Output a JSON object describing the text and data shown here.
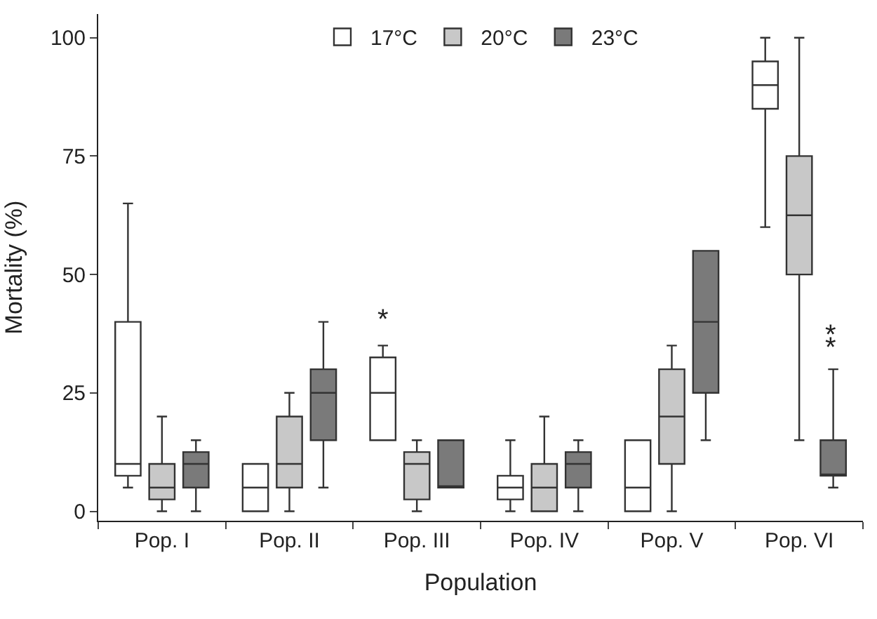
{
  "chart_data": {
    "type": "box",
    "xlabel": "Population",
    "ylabel": "Mortality (%)",
    "categories": [
      "Pop. I",
      "Pop. II",
      "Pop. III",
      "Pop. IV",
      "Pop. V",
      "Pop. VI"
    ],
    "ylim": [
      -2,
      105
    ],
    "yticks": [
      0,
      25,
      50,
      75,
      100
    ],
    "legend": "top",
    "series": [
      {
        "name": "17°C",
        "color": "#ffffff",
        "boxes": [
          {
            "low": 5,
            "q1": 7.5,
            "median": 10,
            "q3": 40,
            "high": 65
          },
          {
            "low": 0,
            "q1": 0,
            "median": 5,
            "q3": 10,
            "high": 10
          },
          {
            "low": 15,
            "q1": 15,
            "median": 25,
            "q3": 32.5,
            "high": 35
          },
          {
            "low": 0,
            "q1": 2.5,
            "median": 5,
            "q3": 7.5,
            "high": 15
          },
          {
            "low": 0,
            "q1": 0,
            "median": 5,
            "q3": 15,
            "high": 15
          },
          {
            "low": 60,
            "q1": 85,
            "median": 90,
            "q3": 95,
            "high": 100
          }
        ]
      },
      {
        "name": "20°C",
        "color": "#c8c8c8",
        "boxes": [
          {
            "low": 0,
            "q1": 2.5,
            "median": 5,
            "q3": 10,
            "high": 20
          },
          {
            "low": 0,
            "q1": 5,
            "median": 10,
            "q3": 20,
            "high": 25
          },
          {
            "low": 0,
            "q1": 2.5,
            "median": 10,
            "q3": 12.5,
            "high": 15
          },
          {
            "low": 0,
            "q1": 0,
            "median": 5,
            "q3": 10,
            "high": 20
          },
          {
            "low": 0,
            "q1": 10,
            "median": 20,
            "q3": 30,
            "high": 35
          },
          {
            "low": 15,
            "q1": 50,
            "median": 62.5,
            "q3": 75,
            "high": 100
          }
        ]
      },
      {
        "name": "23°C",
        "color": "#7a7a7a",
        "boxes": [
          {
            "low": 0,
            "q1": 5,
            "median": 10,
            "q3": 12.5,
            "high": 15
          },
          {
            "low": 5,
            "q1": 15,
            "median": 25,
            "q3": 30,
            "high": 40
          },
          {
            "low": 5,
            "q1": 5,
            "median": 5,
            "q3": 15,
            "high": 15
          },
          {
            "low": 0,
            "q1": 5,
            "median": 10,
            "q3": 12.5,
            "high": 15
          },
          {
            "low": 15,
            "q1": 25,
            "median": 40,
            "q3": 55,
            "high": 55
          },
          {
            "low": 5,
            "q1": 7.5,
            "median": 7.5,
            "q3": 15,
            "high": 30
          }
        ]
      }
    ],
    "annotations": [
      "*",
      "**"
    ]
  }
}
